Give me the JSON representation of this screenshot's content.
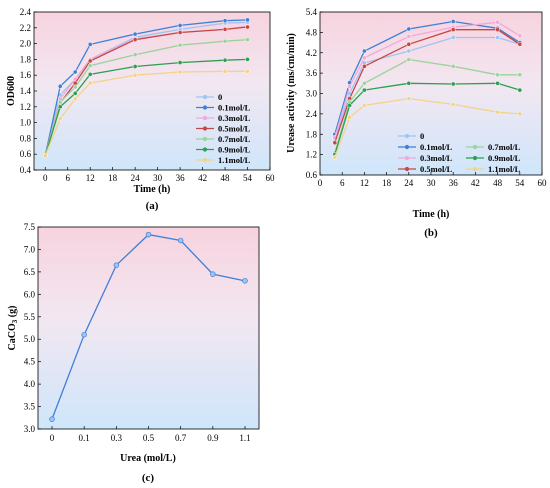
{
  "chart_data": [
    {
      "type": "line",
      "panel_label": "(a)",
      "xlabel": "Time (h)",
      "ylabel": "OD600",
      "xlim": [
        -3,
        60
      ],
      "ylim": [
        0.4,
        2.4
      ],
      "xticks": [
        0,
        6,
        12,
        18,
        24,
        30,
        36,
        42,
        48,
        54,
        60
      ],
      "yticks": [
        0.4,
        0.6,
        0.8,
        1.0,
        1.2,
        1.4,
        1.6,
        1.8,
        2.0,
        2.2,
        2.4
      ],
      "ytick_labels": [
        "0.4",
        "0.6",
        "0.8",
        "1.0",
        "1.2",
        "1.4",
        "1.6",
        "1.8",
        "2.0",
        "2.2",
        "2.4"
      ],
      "background": "pink-to-blue gradient",
      "legend_position": "bottom-right",
      "x": [
        0,
        4,
        8,
        12,
        24,
        36,
        48,
        54
      ],
      "series": [
        {
          "name": "0",
          "color": "#9ec4f5",
          "values": [
            0.58,
            1.35,
            1.55,
            1.8,
            2.08,
            2.18,
            2.26,
            2.27
          ]
        },
        {
          "name": "0.1mol/L",
          "color": "#3f7fd6",
          "values": [
            0.58,
            1.46,
            1.64,
            1.99,
            2.12,
            2.23,
            2.29,
            2.3
          ]
        },
        {
          "name": "0.3mol/L",
          "color": "#f2a9d9",
          "values": [
            0.58,
            1.3,
            1.55,
            1.8,
            2.06,
            2.14,
            2.18,
            2.22
          ]
        },
        {
          "name": "0.5mol/L",
          "color": "#c84646",
          "values": [
            0.58,
            1.25,
            1.5,
            1.78,
            2.05,
            2.14,
            2.18,
            2.21
          ]
        },
        {
          "name": "0.7mol/L",
          "color": "#9bd39b",
          "values": [
            0.58,
            1.26,
            1.45,
            1.72,
            1.86,
            1.98,
            2.03,
            2.05
          ]
        },
        {
          "name": "0.9mol/L",
          "color": "#2e9e4f",
          "values": [
            0.58,
            1.2,
            1.37,
            1.61,
            1.71,
            1.76,
            1.79,
            1.8
          ]
        },
        {
          "name": "1.1mol/L",
          "color": "#f3d389",
          "values": [
            0.58,
            1.05,
            1.3,
            1.5,
            1.6,
            1.64,
            1.65,
            1.65
          ]
        }
      ]
    },
    {
      "type": "line",
      "panel_label": "(b)",
      "xlabel": "Time (h)",
      "ylabel": "Urease activity (ms/cm/min)",
      "xlim": [
        0,
        60
      ],
      "ylim": [
        0.6,
        5.4
      ],
      "xticks": [
        0,
        6,
        12,
        18,
        24,
        30,
        36,
        42,
        48,
        54,
        60
      ],
      "yticks": [
        0.6,
        1.2,
        1.8,
        2.4,
        3.0,
        3.6,
        4.2,
        4.8,
        5.4
      ],
      "ytick_labels": [
        "0.6",
        "1.2",
        "1.8",
        "2.4",
        "3.0",
        "3.6",
        "4.2",
        "4.8",
        "5.4"
      ],
      "background": "pink-to-blue gradient",
      "legend_position": "bottom",
      "x": [
        4,
        8,
        12,
        24,
        36,
        48,
        54
      ],
      "series": [
        {
          "name": "0",
          "color": "#9ec4f5",
          "values": [
            1.65,
            3.0,
            3.9,
            4.25,
            4.65,
            4.65,
            4.45
          ]
        },
        {
          "name": "0.1mol/L",
          "color": "#3f7fd6",
          "values": [
            1.8,
            3.32,
            4.25,
            4.9,
            5.12,
            4.92,
            4.5
          ]
        },
        {
          "name": "0.3mol/L",
          "color": "#f2a9d9",
          "values": [
            1.7,
            3.2,
            4.05,
            4.68,
            4.95,
            5.1,
            4.7
          ]
        },
        {
          "name": "0.5mol/L",
          "color": "#c84646",
          "values": [
            1.55,
            2.85,
            3.8,
            4.45,
            4.88,
            4.88,
            4.45
          ]
        },
        {
          "name": "0.7mol/L",
          "color": "#9bd39b",
          "values": [
            1.25,
            2.75,
            3.3,
            4.0,
            3.8,
            3.55,
            3.55
          ]
        },
        {
          "name": "0.9mol/L",
          "color": "#2e9e4f",
          "values": [
            1.2,
            2.65,
            3.1,
            3.3,
            3.28,
            3.3,
            3.1
          ]
        },
        {
          "name": "1.1mol/L",
          "color": "#f3d389",
          "values": [
            1.12,
            2.3,
            2.65,
            2.85,
            2.68,
            2.45,
            2.4
          ]
        }
      ]
    },
    {
      "type": "line",
      "panel_label": "(c)",
      "xlabel": "Urea (mol/L)",
      "ylabel": "CaCO3 (g)",
      "ylabel_main": "CaCO",
      "ylabel_sub": "3",
      "ylabel_tail": " (g)",
      "ylim": [
        3.0,
        7.5
      ],
      "yticks": [
        3.0,
        3.5,
        4.0,
        4.5,
        5.0,
        5.5,
        6.0,
        6.5,
        7.0,
        7.5
      ],
      "ytick_labels": [
        "3.0",
        "3.5",
        "4.0",
        "4.5",
        "5.0",
        "5.5",
        "6.0",
        "6.5",
        "7.0",
        "7.5"
      ],
      "background": "pink-to-blue gradient",
      "categories": [
        "0",
        "0.1",
        "0.3",
        "0.5",
        "0.7",
        "0.9",
        "1.1"
      ],
      "series": [
        {
          "color": "#3f7fd6",
          "values": [
            3.22,
            5.1,
            6.65,
            7.33,
            7.2,
            6.45,
            6.3
          ]
        }
      ]
    }
  ]
}
